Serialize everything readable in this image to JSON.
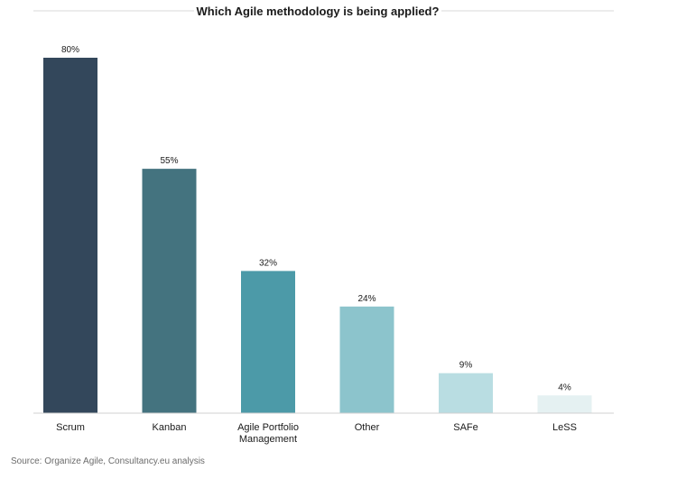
{
  "chart_data": {
    "type": "bar",
    "title": "Which Agile methodology is being applied?",
    "categories": [
      "Scrum",
      "Kanban",
      "Agile Portfolio Management",
      "Other",
      "SAFe",
      "LeSS"
    ],
    "category_lines": [
      [
        "Scrum"
      ],
      [
        "Kanban"
      ],
      [
        "Agile Portfolio",
        "Management"
      ],
      [
        "Other"
      ],
      [
        "SAFe"
      ],
      [
        "LeSS"
      ]
    ],
    "values": [
      80,
      55,
      32,
      24,
      9,
      4
    ],
    "value_labels": [
      "80%",
      "55%",
      "32%",
      "24%",
      "9%",
      "4%"
    ],
    "colors": [
      "#33475b",
      "#44737f",
      "#4c9aa8",
      "#8cc4cc",
      "#b9dde2",
      "#e5f1f2"
    ],
    "ylim": [
      0,
      80
    ],
    "grid": false,
    "legend": "none"
  },
  "source": "Source: Organize Agile, Consultancy.eu analysis"
}
